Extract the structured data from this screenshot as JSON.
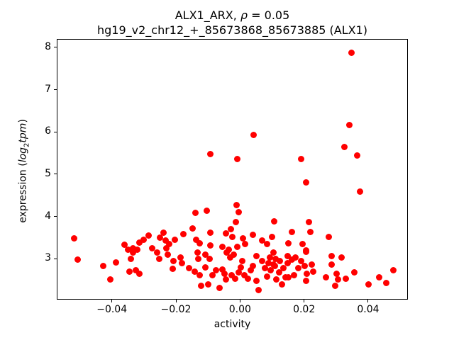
{
  "figure": {
    "title_line1": {
      "prefix": "ALX1_ARX, ",
      "rho": "ρ",
      "suffix": " = 0.05"
    },
    "title_line2": "hg19_v2_chr12_+_85673868_85673885 (ALX1)",
    "xlabel": "activity",
    "ylabel": {
      "prefix": "expression (",
      "log": "log",
      "sub": "2",
      "tpm": "tpm",
      "suffix": ")"
    }
  },
  "chart_data": {
    "type": "scatter",
    "title": "ALX1_ARX, ρ = 0.05",
    "subtitle": "hg19_v2_chr12_+_85673868_85673885 (ALX1)",
    "xlabel": "activity",
    "ylabel": "expression (log2 tpm)",
    "marker_color": "#ff0000",
    "marker_diameter_px": 9,
    "grid": false,
    "legend": "none",
    "xlim": [
      -0.0572,
      0.0524
    ],
    "ylim": [
      2.03,
      8.2
    ],
    "xticks": [
      -0.04,
      -0.02,
      0.0,
      0.02,
      0.04
    ],
    "xtick_labels": [
      "−0.04",
      "−0.02",
      "0.00",
      "0.02",
      "0.04"
    ],
    "yticks": [
      3,
      4,
      5,
      6,
      7,
      8
    ],
    "ytick_labels": [
      "3",
      "4",
      "5",
      "6",
      "7",
      "8"
    ],
    "points": [
      [
        0.0348,
        7.87
      ],
      [
        0.0341,
        6.17
      ],
      [
        0.0043,
        5.92
      ],
      [
        0.0325,
        5.64
      ],
      [
        -0.0092,
        5.48
      ],
      [
        0.0365,
        5.45
      ],
      [
        -0.0008,
        5.36
      ],
      [
        0.019,
        5.36
      ],
      [
        0.0207,
        4.81
      ],
      [
        0.0375,
        4.58
      ],
      [
        -0.001,
        4.27
      ],
      [
        -0.014,
        4.09
      ],
      [
        -0.0104,
        4.13
      ],
      [
        -0.0003,
        4.1
      ],
      [
        0.0106,
        3.89
      ],
      [
        0.0215,
        3.87
      ],
      [
        -0.0149,
        3.72
      ],
      [
        -0.0176,
        3.58
      ],
      [
        -0.0093,
        3.62
      ],
      [
        -0.0012,
        3.87
      ],
      [
        -0.0028,
        3.7
      ],
      [
        -0.0045,
        3.59
      ],
      [
        -0.0023,
        3.51
      ],
      [
        -0.0137,
        3.45
      ],
      [
        -0.0126,
        3.37
      ],
      [
        -0.0093,
        3.31
      ],
      [
        -0.0056,
        3.28
      ],
      [
        0.001,
        3.48
      ],
      [
        0.004,
        3.56
      ],
      [
        0.0016,
        3.34
      ],
      [
        -0.0008,
        3.28
      ],
      [
        0.0069,
        3.43
      ],
      [
        0.0084,
        3.34
      ],
      [
        0.0099,
        3.51
      ],
      [
        -0.0204,
        3.45
      ],
      [
        0.015,
        3.37
      ],
      [
        -0.0518,
        3.48
      ],
      [
        -0.036,
        3.33
      ],
      [
        -0.0334,
        3.25
      ],
      [
        -0.0314,
        3.38
      ],
      [
        -0.0301,
        3.45
      ],
      [
        -0.0286,
        3.55
      ],
      [
        -0.025,
        3.49
      ],
      [
        -0.0238,
        3.62
      ],
      [
        -0.0233,
        3.43
      ],
      [
        -0.0222,
        3.35
      ],
      [
        0.0219,
        3.63
      ],
      [
        0.0162,
        3.63
      ],
      [
        0.0278,
        3.51
      ],
      [
        0.0195,
        3.35
      ],
      [
        0.0207,
        3.2
      ],
      [
        -0.0506,
        2.98
      ],
      [
        -0.0428,
        2.83
      ],
      [
        -0.0388,
        2.91
      ],
      [
        -0.0405,
        2.5
      ],
      [
        -0.035,
        3.21
      ],
      [
        -0.034,
        3.0
      ],
      [
        -0.0333,
        3.15
      ],
      [
        -0.0321,
        3.22
      ],
      [
        -0.0345,
        2.69
      ],
      [
        -0.0325,
        2.72
      ],
      [
        -0.0314,
        2.65
      ],
      [
        -0.0274,
        3.25
      ],
      [
        -0.0259,
        3.14
      ],
      [
        -0.0253,
        3.0
      ],
      [
        -0.0231,
        3.25
      ],
      [
        -0.0226,
        3.1
      ],
      [
        -0.0207,
        2.95
      ],
      [
        -0.0211,
        2.76
      ],
      [
        -0.0185,
        3.03
      ],
      [
        -0.0181,
        2.89
      ],
      [
        -0.0159,
        2.78
      ],
      [
        -0.0133,
        3.14
      ],
      [
        -0.013,
        3.0
      ],
      [
        -0.0141,
        2.69
      ],
      [
        -0.0126,
        2.61
      ],
      [
        -0.0108,
        3.09
      ],
      [
        -0.0094,
        3.0
      ],
      [
        -0.0108,
        2.8
      ],
      [
        -0.0086,
        2.61
      ],
      [
        -0.0075,
        2.72
      ],
      [
        -0.0122,
        2.36
      ],
      [
        -0.01,
        2.39
      ],
      [
        -0.0056,
        2.75
      ],
      [
        -0.0049,
        2.64
      ],
      [
        -0.0045,
        2.5
      ],
      [
        -0.0063,
        2.3
      ],
      [
        -0.0041,
        3.14
      ],
      [
        -0.0034,
        3.22
      ],
      [
        -0.003,
        3.03
      ],
      [
        -0.0019,
        3.09
      ],
      [
        -0.0027,
        2.61
      ],
      [
        -0.0015,
        2.53
      ],
      [
        -0.0004,
        2.67
      ],
      [
        0.0003,
        2.8
      ],
      [
        0.0007,
        2.94
      ],
      [
        0.0014,
        2.61
      ],
      [
        0.0025,
        2.53
      ],
      [
        0.0033,
        2.72
      ],
      [
        0.004,
        2.83
      ],
      [
        0.0051,
        2.47
      ],
      [
        0.0058,
        2.25
      ],
      [
        0.0051,
        3.06
      ],
      [
        0.0069,
        2.94
      ],
      [
        0.0077,
        2.78
      ],
      [
        0.0084,
        2.58
      ],
      [
        0.0088,
        2.89
      ],
      [
        0.0114,
        2.5
      ],
      [
        0.0132,
        2.39
      ],
      [
        0.0096,
        2.72
      ],
      [
        0.0105,
        2.86
      ],
      [
        0.0123,
        2.67
      ],
      [
        0.0141,
        2.55
      ],
      [
        0.0135,
        2.78
      ],
      [
        0.0148,
        2.89
      ],
      [
        0.0112,
        3.0
      ],
      [
        0.0125,
        2.94
      ],
      [
        0.0093,
        3.03
      ],
      [
        0.0104,
        3.14
      ],
      [
        0.0108,
        2.83
      ],
      [
        0.0148,
        3.06
      ],
      [
        0.0152,
        2.56
      ],
      [
        0.0206,
        3.17
      ],
      [
        0.0173,
        3.03
      ],
      [
        0.0191,
        2.94
      ],
      [
        0.0162,
        2.97
      ],
      [
        0.0182,
        2.78
      ],
      [
        0.0202,
        2.83
      ],
      [
        0.0224,
        2.86
      ],
      [
        0.0228,
        2.69
      ],
      [
        0.0209,
        2.64
      ],
      [
        0.0206,
        2.47
      ],
      [
        0.0169,
        2.61
      ],
      [
        0.0287,
        3.06
      ],
      [
        0.0316,
        3.03
      ],
      [
        0.0287,
        2.86
      ],
      [
        0.0268,
        2.56
      ],
      [
        0.0302,
        2.64
      ],
      [
        0.0305,
        2.5
      ],
      [
        0.0331,
        2.53
      ],
      [
        0.0298,
        2.36
      ],
      [
        0.0357,
        2.67
      ],
      [
        0.0401,
        2.39
      ],
      [
        0.0434,
        2.56
      ],
      [
        0.0456,
        2.42
      ],
      [
        0.0479,
        2.73
      ]
    ]
  }
}
